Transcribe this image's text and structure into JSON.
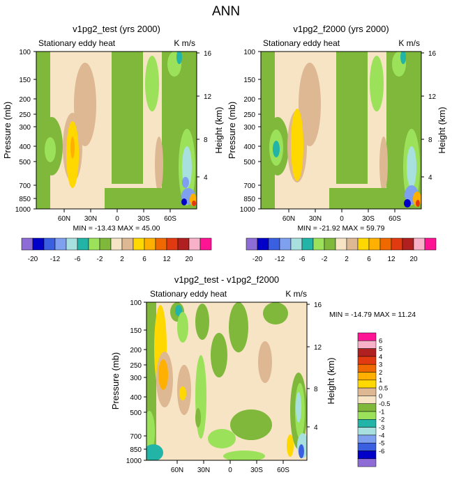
{
  "page_title": "ANN",
  "colors": {
    "div1": "#8e6cd6",
    "div2": "#0000c8",
    "div3": "#3a5fe0",
    "div4": "#7ea0ee",
    "div5": "#a8e0e0",
    "div6": "#22b4a6",
    "div7": "#9be25a",
    "div8": "#7fb83a",
    "div9": "#f6e4c4",
    "div10": "#ddb892",
    "div11": "#ffd800",
    "div12": "#ffb000",
    "div13": "#f06800",
    "div14": "#e23a10",
    "div15": "#b02020",
    "div16": "#f7b1c8",
    "div17": "#ff1493"
  },
  "chart_data": [
    {
      "id": "test",
      "type": "heatmap",
      "title": "v1pg2_test (yrs 2000)",
      "subtitle_left": "Stationary eddy heat",
      "subtitle_right": "K m/s",
      "ylabel": "Pressure (mb)",
      "ylabel_right": "Height (km)",
      "yticks": [
        "100",
        "150",
        "200",
        "250",
        "300",
        "400",
        "500",
        "700",
        "850",
        "1000"
      ],
      "yticks_right": [
        "16",
        "12",
        "8",
        "4"
      ],
      "xticks": [
        "60N",
        "30N",
        "0",
        "30S",
        "60S"
      ],
      "stats": "MIN = -13.43  MAX =  45.00",
      "colorbar_labels": [
        "-20",
        "-12",
        "-6",
        "-2",
        "2",
        "6",
        "12",
        "20"
      ]
    },
    {
      "id": "f2000",
      "type": "heatmap",
      "title": "v1pg2_f2000 (yrs 2000)",
      "subtitle_left": "Stationary eddy heat",
      "subtitle_right": "K m/s",
      "ylabel": "Pressure (mb)",
      "ylabel_right": "Height (km)",
      "yticks": [
        "100",
        "150",
        "200",
        "250",
        "300",
        "400",
        "500",
        "700",
        "850",
        "1000"
      ],
      "yticks_right": [
        "16",
        "12",
        "8",
        "4"
      ],
      "xticks": [
        "60N",
        "30N",
        "0",
        "30S",
        "60S"
      ],
      "stats": "MIN = -21.92  MAX =  59.79",
      "colorbar_labels": [
        "-20",
        "-12",
        "-6",
        "-2",
        "2",
        "6",
        "12",
        "20"
      ]
    },
    {
      "id": "diff",
      "type": "heatmap",
      "title": "v1pg2_test - v1pg2_f2000",
      "subtitle_left": "Stationary eddy heat",
      "subtitle_right": "K m/s",
      "ylabel": "Pressure (mb)",
      "ylabel_right": "Height (km)",
      "yticks": [
        "100",
        "150",
        "200",
        "250",
        "300",
        "400",
        "500",
        "700",
        "850",
        "1000"
      ],
      "yticks_right": [
        "16",
        "12",
        "8",
        "4"
      ],
      "xticks": [
        "60N",
        "30N",
        "0",
        "30S",
        "60S"
      ],
      "stats": "MIN = -14.79  MAX =  11.24",
      "colorbar_labels": [
        "6",
        "5",
        "4",
        "3",
        "2",
        "1",
        "0.5",
        "0",
        "-0.5",
        "-1",
        "-2",
        "-3",
        "-4",
        "-5",
        "-6"
      ]
    }
  ]
}
